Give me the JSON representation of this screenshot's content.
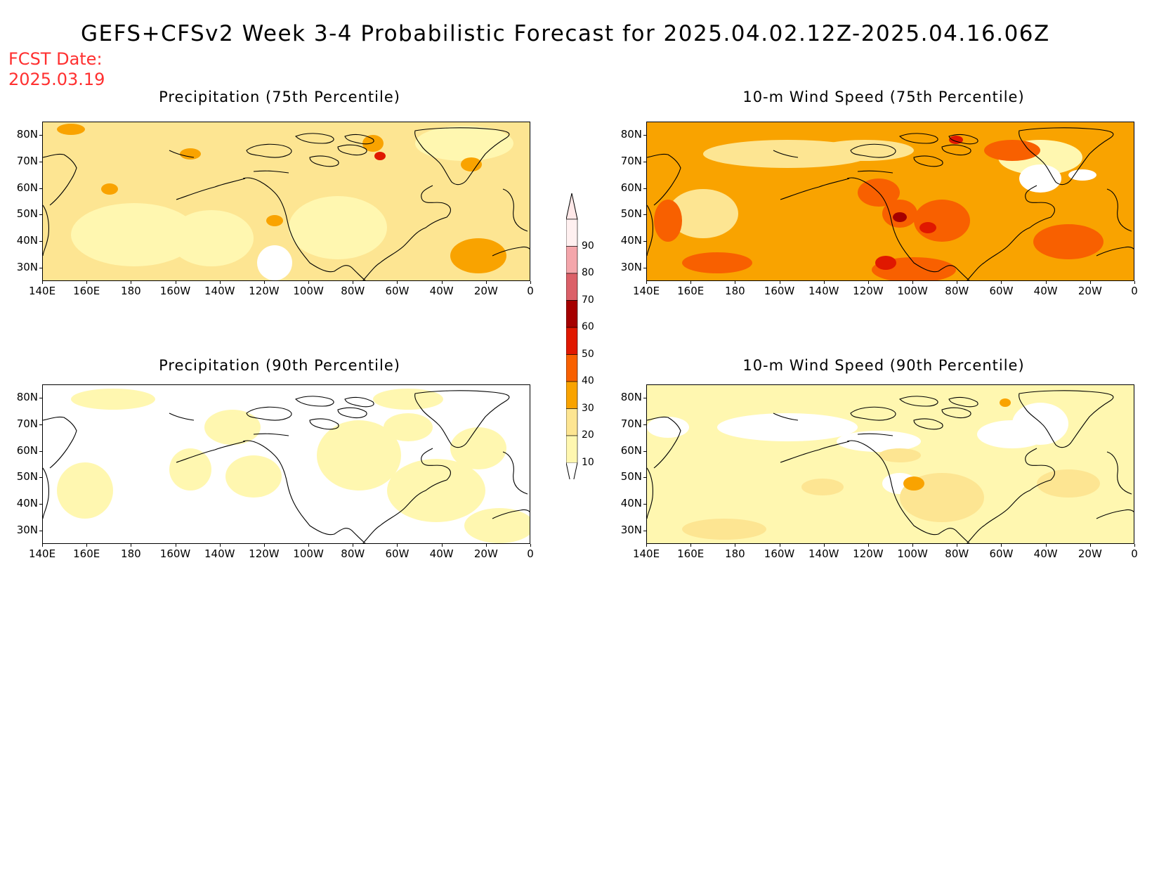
{
  "title": "GEFS+CFSv2 Week 3-4 Probabilistic Forecast for 2025.04.02.12Z-2025.04.16.06Z",
  "fcst_date": {
    "label": "FCST Date:",
    "value": "2025.03.19"
  },
  "panels": [
    {
      "id": "precip75",
      "title": "Precipitation (75th Percentile)",
      "base": "#fde592"
    },
    {
      "id": "wind75",
      "title": "10-m Wind Speed (75th Percentile)",
      "base": "#f9a300"
    },
    {
      "id": "precip90",
      "title": "Precipitation (90th Percentile)",
      "base": "#ffffff"
    },
    {
      "id": "wind90",
      "title": "10-m Wind Speed (90th Percentile)",
      "base": "#fff7b0"
    }
  ],
  "lat_labels": [
    "80N",
    "70N",
    "60N",
    "50N",
    "40N",
    "30N"
  ],
  "lon_labels": [
    "140E",
    "160E",
    "180",
    "160W",
    "140W",
    "120W",
    "100W",
    "80W",
    "60W",
    "40W",
    "20W",
    "0"
  ],
  "colorbar": {
    "labels": [
      "90",
      "80",
      "70",
      "60",
      "50",
      "40",
      "30",
      "20",
      "10"
    ],
    "colors": [
      "#fff0f0",
      "#f4a6ab",
      "#db6068",
      "#a50000",
      "#e01800",
      "#f86000",
      "#f9a300",
      "#fde592",
      "#fff7b0"
    ]
  },
  "chart_data": {
    "type": "heatmap",
    "title": "GEFS+CFSv2 Week 3-4 Probabilistic Forecast for 2025.04.02.12Z-2025.04.16.06Z",
    "lat_range": [
      25,
      85
    ],
    "lon_range": [
      "140E",
      "0"
    ],
    "levels": [
      10,
      20,
      30,
      40,
      50,
      60,
      70,
      80,
      90
    ],
    "panels": [
      "Precipitation (75th Percentile)",
      "10-m Wind Speed (75th Percentile)",
      "Precipitation (90th Percentile)",
      "10-m Wind Speed (90th Percentile)"
    ]
  }
}
